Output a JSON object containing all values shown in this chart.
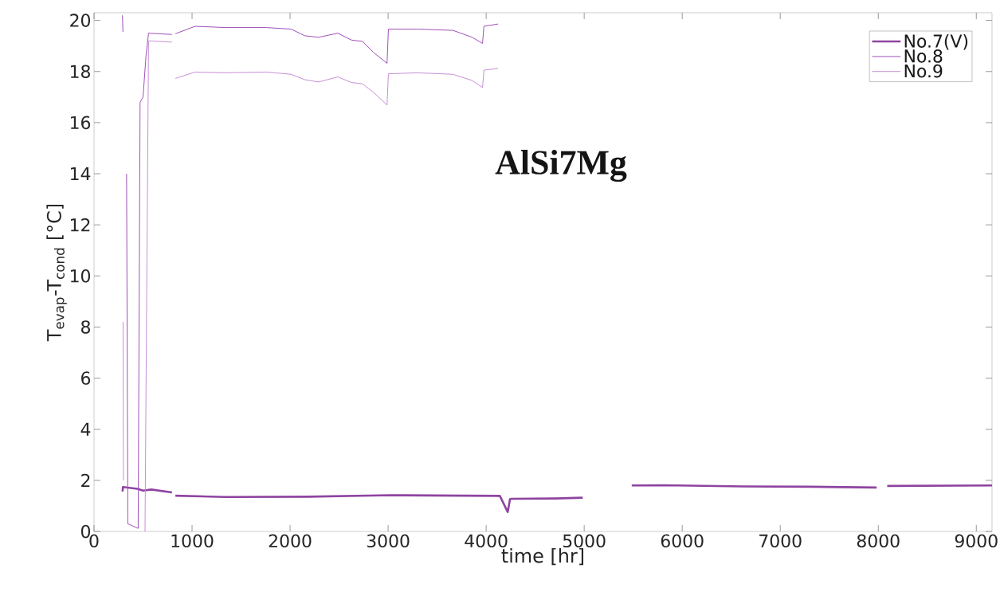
{
  "chart_data": {
    "type": "line",
    "xlabel": "time [hr]",
    "ylabel": "T$_{evap}$-T$_{cond}$ [°C]",
    "annotations": [
      "**AlSi7Mg**"
    ],
    "xlim": [
      0,
      9160
    ],
    "ylim": [
      0,
      20.3
    ],
    "xticks": [
      0,
      1000,
      2000,
      3000,
      4000,
      5000,
      6000,
      7000,
      8000,
      9000
    ],
    "yticks": [
      0,
      2,
      4,
      6,
      8,
      10,
      12,
      14,
      16,
      18,
      20
    ],
    "legend": "top right",
    "series": [
      {
        "name": "No.7(V)",
        "color": "#8e44a0",
        "x": [
          291,
          295,
          444,
          500,
          585,
          795,
          812,
          830,
          1340,
          2182,
          3022,
          4140,
          4220,
          4243,
          4260,
          4699,
          4985,
          5200,
          5485,
          5816,
          6629,
          7306,
          7983,
          8040,
          8091,
          9160
        ],
        "values": [
          1.56,
          1.74,
          1.67,
          1.6,
          1.64,
          1.53,
          null,
          1.4,
          1.35,
          1.36,
          1.42,
          1.39,
          0.76,
          1.26,
          1.28,
          1.29,
          1.32,
          null,
          1.8,
          1.81,
          1.76,
          1.75,
          1.72,
          null,
          1.78,
          1.8
        ]
      },
      {
        "name": "No.8",
        "color": "#a050b8",
        "x": [
          290,
          295,
          296,
          332,
          345,
          450,
          470,
          500,
          530,
          556,
          795,
          812,
          830,
          1032,
          1340,
          1759,
          2010,
          2150,
          2291,
          2487,
          2627,
          2738,
          2850,
          2989,
          3003,
          3297,
          3661,
          3857,
          3963,
          3977,
          4122
        ],
        "values": [
          20.2,
          19.55,
          null,
          14.0,
          0.3,
          0.12,
          16.8,
          17.0,
          18.6,
          19.5,
          19.45,
          null,
          19.48,
          19.77,
          19.72,
          19.72,
          19.66,
          19.4,
          19.34,
          19.5,
          19.23,
          19.18,
          18.75,
          18.32,
          19.66,
          19.66,
          19.61,
          19.34,
          19.1,
          19.77,
          19.86
        ]
      },
      {
        "name": "No.9",
        "color": "#c78fd6",
        "x": [
          296,
          300,
          310,
          520,
          556,
          795,
          812,
          830,
          1032,
          1340,
          1759,
          2010,
          2150,
          2291,
          2487,
          2627,
          2738,
          2850,
          2989,
          3003,
          3297,
          3661,
          3857,
          3963,
          3977,
          4122
        ],
        "values": [
          8.2,
          2.0,
          null,
          0,
          19.2,
          19.15,
          null,
          17.73,
          17.98,
          17.95,
          17.98,
          17.89,
          17.68,
          17.59,
          17.79,
          17.57,
          17.52,
          17.19,
          16.69,
          17.91,
          17.95,
          17.89,
          17.65,
          17.37,
          18.05,
          18.12
        ]
      }
    ]
  }
}
